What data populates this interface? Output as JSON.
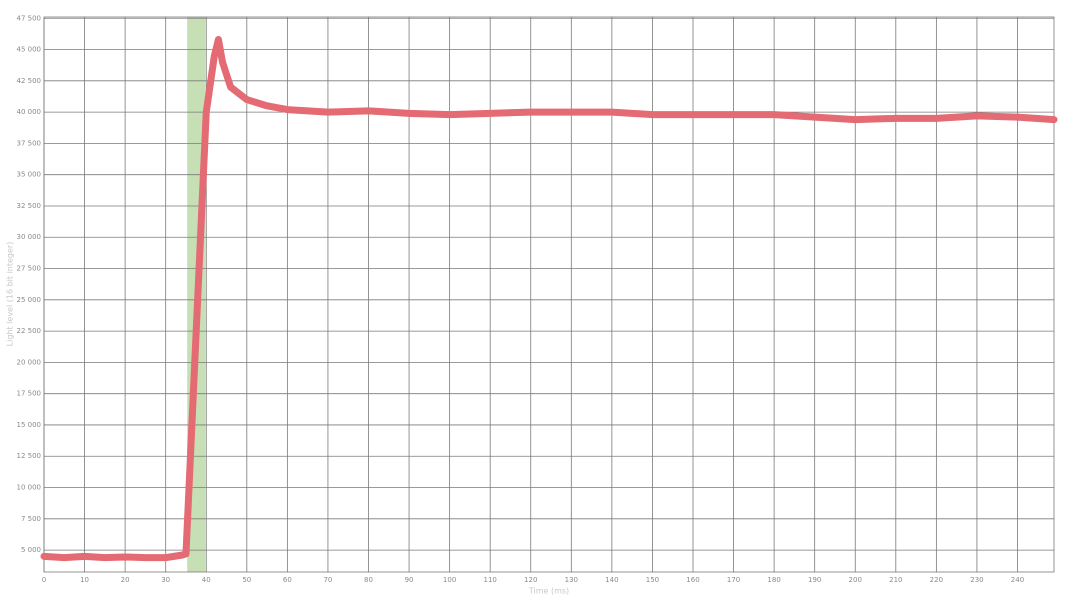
{
  "chart_data": {
    "type": "line",
    "x_label": "Time (ms)",
    "y_label": "Light level (16 bit integer)",
    "xlim": [
      0,
      249
    ],
    "ylim": [
      3250,
      47600
    ],
    "xticks": [
      0,
      10,
      20,
      30,
      40,
      50,
      60,
      70,
      80,
      90,
      100,
      110,
      120,
      130,
      140,
      150,
      160,
      170,
      180,
      190,
      200,
      210,
      220,
      230,
      240
    ],
    "yticks": [
      {
        "value": 5000,
        "label": "5 000"
      },
      {
        "value": 7500,
        "label": "7 500"
      },
      {
        "value": 10000,
        "label": "10 000"
      },
      {
        "value": 12500,
        "label": "12 500"
      },
      {
        "value": 15000,
        "label": "15 000"
      },
      {
        "value": 17500,
        "label": "17 500"
      },
      {
        "value": 20000,
        "label": "20 000"
      },
      {
        "value": 22500,
        "label": "22 500"
      },
      {
        "value": 25000,
        "label": "25 000"
      },
      {
        "value": 27500,
        "label": "27 500"
      },
      {
        "value": 30000,
        "label": "30 000"
      },
      {
        "value": 32500,
        "label": "32 500"
      },
      {
        "value": 35000,
        "label": "35 000"
      },
      {
        "value": 37500,
        "label": "37 500"
      },
      {
        "value": 40000,
        "label": "40 000"
      },
      {
        "value": 42500,
        "label": "42 500"
      },
      {
        "value": 45000,
        "label": "45 000"
      },
      {
        "value": 47500,
        "label": "47 500"
      }
    ],
    "grid": true,
    "highlight": {
      "range": [
        35.3,
        39.8
      ],
      "color": "#c7dfb4"
    },
    "series": [
      {
        "color": "#e46a74",
        "x": [
          0,
          5,
          10,
          15,
          20,
          25,
          30,
          34,
          35,
          40,
          42,
          43,
          44,
          46,
          50,
          55,
          60,
          70,
          80,
          90,
          100,
          110,
          120,
          130,
          140,
          150,
          160,
          170,
          180,
          190,
          200,
          210,
          220,
          230,
          240,
          249
        ],
        "values": [
          4500,
          4400,
          4500,
          4400,
          4450,
          4400,
          4400,
          4600,
          4700,
          40000,
          44500,
          45800,
          44000,
          42000,
          41000,
          40500,
          40200,
          40000,
          40100,
          39900,
          39800,
          39900,
          40000,
          40000,
          40000,
          39800,
          39800,
          39800,
          39800,
          39600,
          39400,
          39500,
          39500,
          39700,
          39600,
          39400
        ]
      }
    ]
  }
}
